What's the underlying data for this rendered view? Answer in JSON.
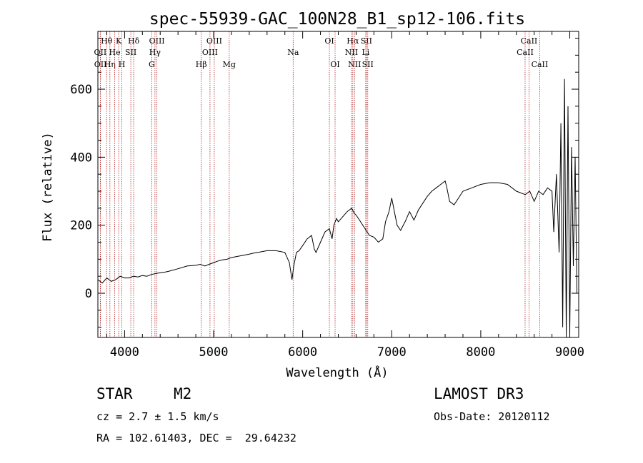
{
  "chart_data": {
    "type": "line",
    "title": "spec-55939-GAC_100N28_B1_sp12-106.fits",
    "xlabel": "Wavelength (Å)",
    "ylabel": "Flux (relative)",
    "xlim": [
      3700,
      9100
    ],
    "ylim": [
      -130,
      770
    ],
    "xticks": [
      4000,
      5000,
      6000,
      7000,
      8000,
      9000
    ],
    "yticks": [
      0,
      200,
      400,
      600
    ],
    "grid": false,
    "series": [
      {
        "name": "flux",
        "x": [
          3700,
          3750,
          3800,
          3850,
          3900,
          3950,
          4000,
          4050,
          4100,
          4150,
          4200,
          4250,
          4300,
          4350,
          4400,
          4450,
          4500,
          4600,
          4700,
          4800,
          4850,
          4900,
          4950,
          5000,
          5050,
          5100,
          5150,
          5200,
          5300,
          5400,
          5450,
          5500,
          5600,
          5700,
          5800,
          5850,
          5880,
          5900,
          5930,
          5960,
          6000,
          6050,
          6100,
          6130,
          6150,
          6200,
          6250,
          6300,
          6330,
          6350,
          6380,
          6400,
          6450,
          6500,
          6550,
          6580,
          6600,
          6650,
          6700,
          6750,
          6800,
          6850,
          6900,
          6930,
          6970,
          7000,
          7030,
          7060,
          7100,
          7150,
          7200,
          7250,
          7300,
          7350,
          7400,
          7450,
          7500,
          7550,
          7600,
          7620,
          7650,
          7700,
          7750,
          7800,
          7900,
          8000,
          8100,
          8200,
          8300,
          8400,
          8500,
          8550,
          8600,
          8650,
          8700,
          8750,
          8800,
          8820,
          8850,
          8880,
          8900,
          8920,
          8940,
          8960,
          8980,
          9000,
          9020,
          9040,
          9060,
          9080
        ],
        "y": [
          40,
          30,
          45,
          35,
          40,
          50,
          45,
          45,
          50,
          48,
          52,
          50,
          55,
          58,
          60,
          62,
          65,
          72,
          80,
          82,
          85,
          80,
          85,
          90,
          95,
          98,
          100,
          105,
          110,
          115,
          118,
          120,
          125,
          125,
          120,
          90,
          40,
          80,
          120,
          125,
          140,
          160,
          170,
          130,
          120,
          150,
          180,
          190,
          160,
          200,
          220,
          210,
          225,
          240,
          250,
          235,
          230,
          210,
          190,
          170,
          165,
          150,
          160,
          210,
          240,
          280,
          240,
          200,
          185,
          210,
          240,
          215,
          245,
          265,
          285,
          300,
          310,
          320,
          330,
          310,
          270,
          260,
          280,
          300,
          310,
          320,
          325,
          325,
          320,
          300,
          290,
          300,
          270,
          300,
          290,
          310,
          300,
          180,
          350,
          120,
          500,
          -100,
          630,
          -150,
          550,
          -120,
          430,
          80,
          400,
          0
        ]
      }
    ],
    "spectral_lines": [
      {
        "label": "Hθ",
        "x": 3798,
        "row": 1
      },
      {
        "label": "OII",
        "x": 3727,
        "row": 2
      },
      {
        "label": "OII",
        "x": 3729,
        "row": 3
      },
      {
        "label": "Hη",
        "x": 3835,
        "row": 3
      },
      {
        "label": "He",
        "x": 3889,
        "row": 2
      },
      {
        "label": "K",
        "x": 3934,
        "row": 1
      },
      {
        "label": "H",
        "x": 3969,
        "row": 3
      },
      {
        "label": "SII",
        "x": 4070,
        "row": 2
      },
      {
        "label": "Hδ",
        "x": 4102,
        "row": 1
      },
      {
        "label": "OIII",
        "x": 4363,
        "row": 1
      },
      {
        "label": "Hγ",
        "x": 4341,
        "row": 2
      },
      {
        "label": "G",
        "x": 4305,
        "row": 3
      },
      {
        "label": "Hβ",
        "x": 4861,
        "row": 3
      },
      {
        "label": "OIII",
        "x": 4959,
        "row": 2
      },
      {
        "label": "OIII",
        "x": 5007,
        "row": 1
      },
      {
        "label": "Mg",
        "x": 5175,
        "row": 3
      },
      {
        "label": "Na",
        "x": 5893,
        "row": 2
      },
      {
        "label": "OI",
        "x": 6300,
        "row": 1
      },
      {
        "label": "OI",
        "x": 6364,
        "row": 3
      },
      {
        "label": "Hα",
        "x": 6563,
        "row": 1
      },
      {
        "label": "NII",
        "x": 6548,
        "row": 2
      },
      {
        "label": "NII",
        "x": 6583,
        "row": 3
      },
      {
        "label": "SII",
        "x": 6716,
        "row": 1
      },
      {
        "label": "Li",
        "x": 6708,
        "row": 2
      },
      {
        "label": "SII",
        "x": 6731,
        "row": 3
      },
      {
        "label": "CaII",
        "x": 8542,
        "row": 1
      },
      {
        "label": "CaII",
        "x": 8498,
        "row": 2
      },
      {
        "label": "CaII",
        "x": 8662,
        "row": 3
      }
    ]
  },
  "info": {
    "class": "STAR",
    "subclass": "M2",
    "survey": "LAMOST DR3",
    "cz": "cz = 2.7 ± 1.5 km/s",
    "obs_date": "Obs-Date: 20120112",
    "radec": "RA = 102.61403, DEC =  29.64232"
  },
  "colors": {
    "line": "#000000",
    "marker": "#b22222"
  }
}
